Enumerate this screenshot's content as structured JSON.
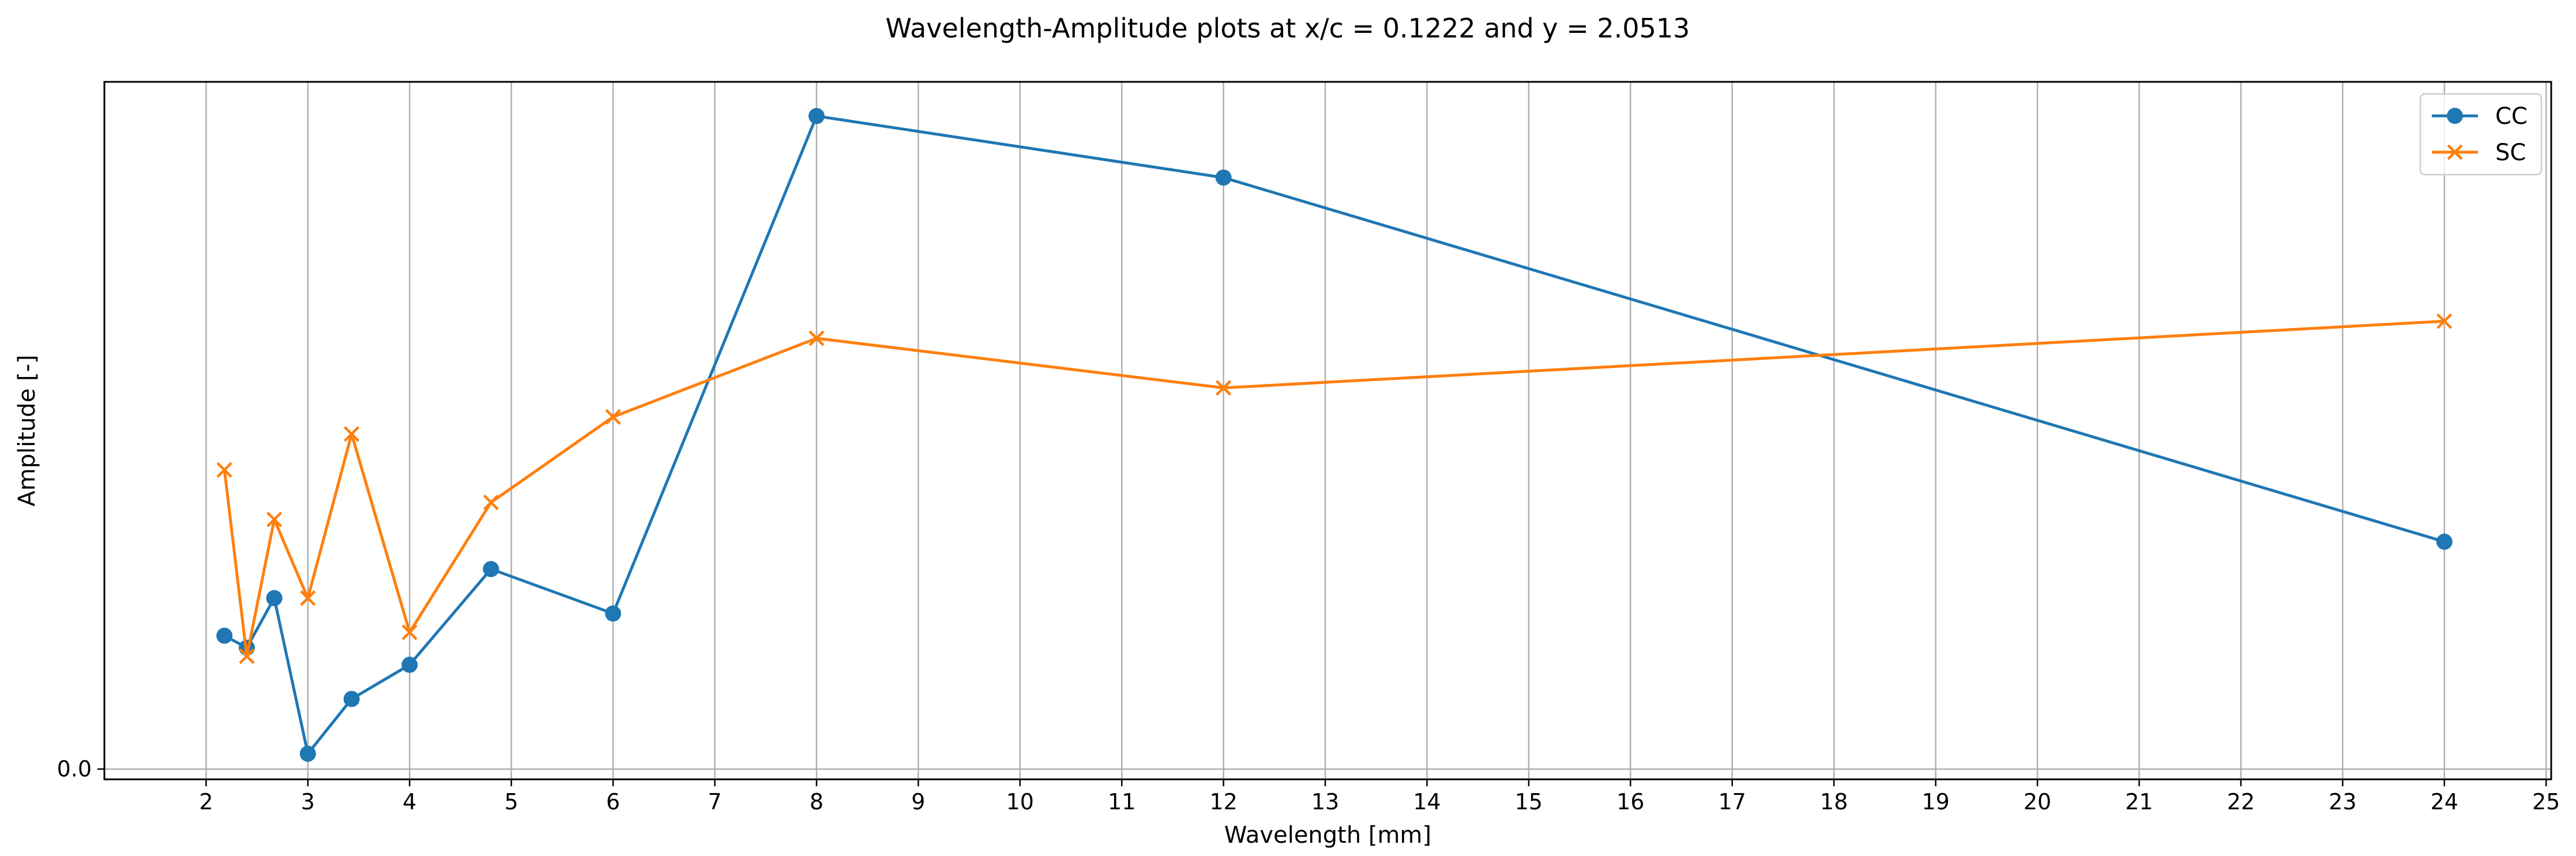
{
  "chart_data": {
    "type": "line",
    "title": "Wavelength-Amplitude plots at x/c = 0.1222 and y = 2.0513",
    "xlabel": "Wavelength [mm]",
    "ylabel": "Amplitude [-]",
    "xlim": [
      1,
      25.05
    ],
    "ylim": [
      -0.3,
      20.1
    ],
    "xticks": [
      2,
      3,
      4,
      5,
      6,
      7,
      8,
      9,
      10,
      11,
      12,
      13,
      14,
      15,
      16,
      17,
      18,
      19,
      20,
      21,
      22,
      23,
      24,
      25
    ],
    "yticks": [
      0
    ],
    "ytick_labels": [
      "0.0"
    ],
    "grid": "vertical",
    "legend_position": "top-right",
    "series": [
      {
        "name": "CC",
        "marker": "circle",
        "color": "#1f77b4",
        "x": [
          2.18,
          2.4,
          2.67,
          3.0,
          3.43,
          4.0,
          4.8,
          6.0,
          8.0,
          12.0,
          24.0
        ],
        "y": [
          3.9,
          3.55,
          5.0,
          0.45,
          2.05,
          3.05,
          5.85,
          4.55,
          19.1,
          17.3,
          6.65
        ]
      },
      {
        "name": "SC",
        "marker": "x",
        "color": "#ff7f0e",
        "x": [
          2.18,
          2.4,
          2.67,
          3.0,
          3.43,
          4.0,
          4.8,
          6.0,
          8.0,
          12.0,
          24.0
        ],
        "y": [
          8.75,
          3.3,
          7.3,
          5.0,
          9.8,
          4.0,
          7.8,
          10.3,
          12.6,
          11.15,
          13.1
        ]
      }
    ]
  }
}
